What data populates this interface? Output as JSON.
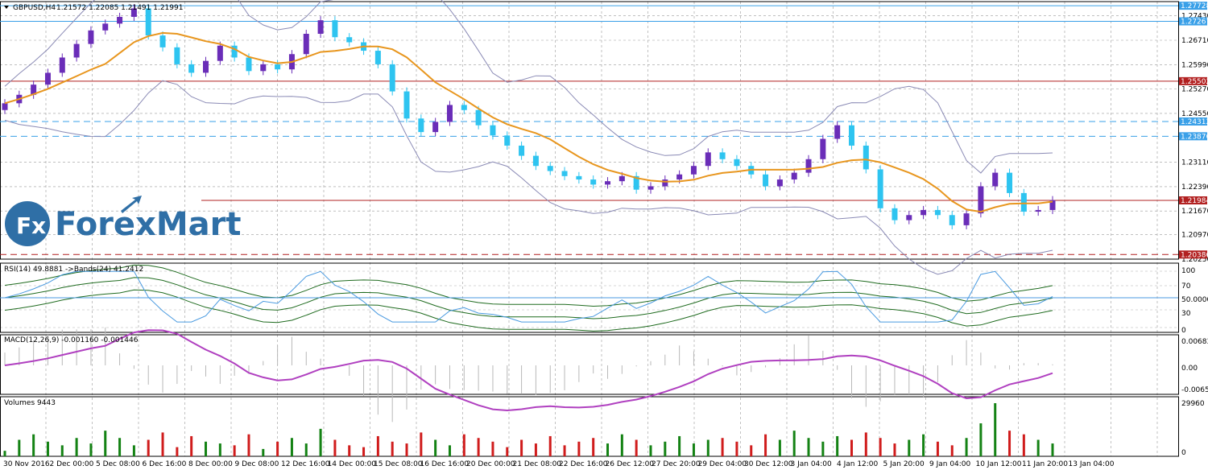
{
  "header": {
    "symbol": "GBPUSD,H4",
    "ohlc": "1.21572 1.22085 1.21491 1.21991"
  },
  "logo": {
    "mark": "Fx",
    "text": "ForexMart"
  },
  "colors": {
    "bull": "#6a2db8",
    "bear": "#2ec4f0",
    "ma": "#e8961e",
    "bands": "#8a8ab5",
    "hline_blue": "#3aa0e8",
    "hline_red": "#b22020",
    "rsi": "#4a9ae0",
    "rsi_bands": "#1f6b1f",
    "macd_signal": "#b040c0",
    "macd_hist": "#b8b8b8",
    "vol_up": "#148214",
    "vol_down": "#d01c1c"
  },
  "chart_data": [
    {
      "type": "candlestick",
      "title": "GBPUSD,H4 1.21572 1.22085 1.21491 1.21991",
      "ylim": [
        1.2025,
        1.2785
      ],
      "price_ticks": [
        "1.27430",
        "1.26710",
        "1.25990",
        "1.25270",
        "1.24550",
        "1.23110",
        "1.22390",
        "1.21670",
        "1.20970",
        "1.20250"
      ],
      "price_tags": [
        {
          "label": "1.27728",
          "value": 1.27728,
          "kind": "blue",
          "style": "solid"
        },
        {
          "label": "1.27267",
          "value": 1.27267,
          "kind": "blue",
          "style": "solid"
        },
        {
          "label": "1.25502",
          "value": 1.25502,
          "kind": "red",
          "style": "solid"
        },
        {
          "label": "1.24312",
          "value": 1.24312,
          "kind": "blue",
          "style": "dash"
        },
        {
          "label": "1.23876",
          "value": 1.23876,
          "kind": "blue",
          "style": "dash"
        },
        {
          "label": "1.21984",
          "value": 1.21984,
          "kind": "red",
          "style": "solid"
        },
        {
          "label": "1.20386",
          "value": 1.20386,
          "kind": "red",
          "style": "dash"
        }
      ],
      "date_labels": [
        "30 Nov 2016",
        "2 Dec 00:00",
        "5 Dec 08:00",
        "6 Dec 16:00",
        "8 Dec 00:00",
        "9 Dec 08:00",
        "12 Dec 16:00",
        "14 Dec 00:00",
        "15 Dec 08:00",
        "16 Dec 16:00",
        "20 Dec 00:00",
        "21 Dec 08:00",
        "22 Dec 16:00",
        "26 Dec 12:00",
        "27 Dec 20:00",
        "29 Dec 04:00",
        "30 Dec 12:00",
        "3 Jan 04:00",
        "4 Jan 12:00",
        "5 Jan 20:00",
        "9 Jan 04:00",
        "10 Jan 12:00",
        "11 Jan 20:00",
        "13 Jan 04:00"
      ],
      "closes": [
        1.2485,
        1.251,
        1.254,
        1.2575,
        1.262,
        1.266,
        1.27,
        1.272,
        1.274,
        1.2765,
        1.2685,
        1.265,
        1.26,
        1.2575,
        1.261,
        1.2655,
        1.262,
        1.258,
        1.26,
        1.2585,
        1.263,
        1.269,
        1.273,
        1.268,
        1.2665,
        1.264,
        1.26,
        1.252,
        1.244,
        1.24,
        1.243,
        1.248,
        1.2465,
        1.242,
        1.239,
        1.236,
        1.233,
        1.23,
        1.2285,
        1.227,
        1.226,
        1.2245,
        1.2255,
        1.227,
        1.223,
        1.224,
        1.226,
        1.2275,
        1.23,
        1.234,
        1.232,
        1.23,
        1.2275,
        1.224,
        1.226,
        1.228,
        1.232,
        1.238,
        1.242,
        1.236,
        1.229,
        1.2175,
        1.214,
        1.2155,
        1.217,
        1.2155,
        1.2125,
        1.216,
        1.224,
        1.228,
        1.222,
        1.2165,
        1.217,
        1.2199
      ],
      "rsi": {
        "label": "RSI(14) 49.8881 ->Bands(24) 41.2412",
        "ylim": [
          0,
          100
        ],
        "ticks": [
          "100",
          "70",
          "50.0000",
          "30",
          "0"
        ]
      },
      "macd": {
        "label": "MACD(12,26,9) -0.001160 -0.001446",
        "ticks": [
          "0.006834",
          "0.00",
          "-0.006553"
        ]
      },
      "volumes": {
        "label": "Volumes 9443",
        "ticks": [
          "29960",
          "0"
        ],
        "max": 29960,
        "values": [
          3,
          9,
          12,
          8,
          6,
          10,
          7,
          14,
          10,
          6,
          9,
          13,
          5,
          11,
          8,
          7,
          6,
          12,
          4,
          8,
          10,
          7,
          15,
          9,
          6,
          5,
          11,
          8,
          7,
          13,
          9,
          6,
          12,
          10,
          8,
          5,
          9,
          7,
          11,
          6,
          8,
          10,
          7,
          12,
          9,
          6,
          8,
          11,
          7,
          9,
          10,
          8,
          6,
          12,
          9,
          14,
          10,
          8,
          11,
          9,
          13,
          10,
          7,
          9,
          12,
          8,
          6,
          10,
          18,
          29,
          14,
          12,
          9,
          7
        ]
      }
    }
  ]
}
